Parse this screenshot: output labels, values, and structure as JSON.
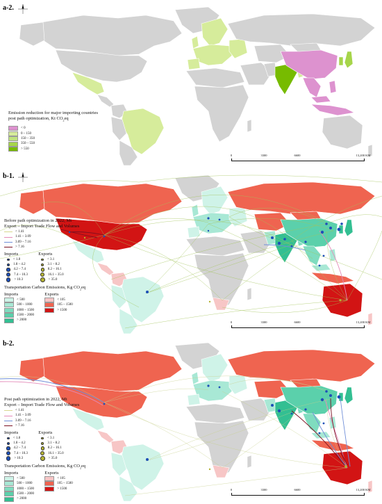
{
  "colors": {
    "grey": "#d3d3d3",
    "pink": "#dd92cf",
    "light_green": "#d6ec9b",
    "mid_green": "#bfe27f",
    "green": "#a6d54a",
    "dark_green": "#77bb00",
    "teal1": "#cff3e8",
    "teal2": "#a8e8d5",
    "teal3": "#7fdcbf",
    "teal4": "#5bd0ab",
    "teal5": "#33bf92",
    "red1": "#f7c6c6",
    "red2": "#ef6450",
    "red3": "#d21414",
    "flow_green": "#a3c45a",
    "flow_blue": "#6f8ed8",
    "flow_pink": "#e58ab8",
    "flow_dark": "#7a1020",
    "dot_blue": "#1d4fb8",
    "dot_olive": "#b5b334"
  },
  "a2": {
    "panel_label": "a-2.",
    "legend_title_1": "Emission reduction for major importing countries",
    "legend_title_2": "post path optimization, Kt CO",
    "legend_title_sub": "2",
    "legend_title_end": "eq",
    "classes": [
      {
        "label": "< 0",
        "color": "#dd92cf"
      },
      {
        "label": "0 – 150",
        "color": "#d6ec9b"
      },
      {
        "label": "150 – 350",
        "color": "#bfe27f"
      },
      {
        "label": "350 – 550",
        "color": "#a6d54a"
      },
      {
        "label": "> 550",
        "color": "#77bb00"
      }
    ],
    "scale": [
      "0",
      "3300",
      "6600",
      "13,200 KM"
    ]
  },
  "b1": {
    "panel_label": "b-1.",
    "flow_title_1": "Before path optimization in 2022, Mt",
    "flow_title_2": "Export – Import Trade Flow and Volumes",
    "flows": [
      {
        "label": "< 1.41",
        "color": "#d8d78f"
      },
      {
        "label": "1.41 – 3.09",
        "color": "#e58ab8"
      },
      {
        "label": "3.09 – 7.16",
        "color": "#6f8ed8"
      },
      {
        "label": "> 7.16",
        "color": "#7a1020"
      }
    ],
    "imports_title": "Imports",
    "exports_title": "Exports",
    "imports": [
      "< 1.8",
      "1.8 – 4.2",
      "4.2 – 7.4",
      "7.4 – 10.3",
      "> 10.3"
    ],
    "exports": [
      "< 3.1",
      "3.1 – 8.2",
      "8.2 – 16.1",
      "16.1 – 35.0",
      "> 35.0"
    ],
    "carbon_title": "Transportation Carbon Emissions, Kg CO",
    "carbon_sub": "2",
    "carbon_end": "eq",
    "carbon_imports_title": "Imports",
    "carbon_exports_title": "Exports",
    "carbon_imports": [
      {
        "label": "< 500",
        "color": "#cff3e8"
      },
      {
        "label": "500 – 1000",
        "color": "#a8e8d5"
      },
      {
        "label": "1000 – 1500",
        "color": "#7fdcbf"
      },
      {
        "label": "1500 – 2000",
        "color": "#5bd0ab"
      },
      {
        "label": "> 2000",
        "color": "#33bf92"
      }
    ],
    "carbon_exports": [
      {
        "label": "< 105",
        "color": "#f7c6c6"
      },
      {
        "label": "105 – 1500",
        "color": "#ef6450"
      },
      {
        "label": "> 1500",
        "color": "#d21414"
      }
    ],
    "scale": [
      "0",
      "3300",
      "6600",
      "13,200 KM"
    ]
  },
  "b2": {
    "panel_label": "b-2.",
    "flow_title_1": "Post path optimization in 2022, Mt",
    "flow_title_2": "Export – Import Trade Flow and Volumes",
    "flows": [
      {
        "label": "< 1.41",
        "color": "#d8d78f"
      },
      {
        "label": "1.41 – 3.09",
        "color": "#e58ab8"
      },
      {
        "label": "3.09 – 7.16",
        "color": "#6f8ed8"
      },
      {
        "label": "> 7.16",
        "color": "#7a1020"
      }
    ],
    "imports_title": "Imports",
    "exports_title": "Exports",
    "imports": [
      "< 1.8",
      "1.8 – 4.2",
      "4.2 – 7.4",
      "7.4 – 10.3",
      "> 10.3"
    ],
    "exports": [
      "< 3.1",
      "3.1 – 8.2",
      "8.2 – 16.1",
      "16.1 – 35.0",
      "> 35.0"
    ],
    "carbon_title": "Transportation Carbon Emissions, Kg CO",
    "carbon_sub": "2",
    "carbon_end": "eq",
    "carbon_imports_title": "Imports",
    "carbon_exports_title": "Exports",
    "carbon_imports": [
      {
        "label": "< 500",
        "color": "#cff3e8"
      },
      {
        "label": "500 – 1000",
        "color": "#a8e8d5"
      },
      {
        "label": "1000 – 1500",
        "color": "#7fdcbf"
      },
      {
        "label": "1500 – 2000",
        "color": "#5bd0ab"
      },
      {
        "label": "> 2000",
        "color": "#33bf92"
      }
    ],
    "carbon_exports": [
      {
        "label": "< 105",
        "color": "#f7c6c6"
      },
      {
        "label": "105 – 1500",
        "color": "#ef6450"
      },
      {
        "label": "> 1500",
        "color": "#d21414"
      }
    ],
    "scale": [
      "0",
      "3300",
      "6600",
      "13,200 KM"
    ]
  }
}
